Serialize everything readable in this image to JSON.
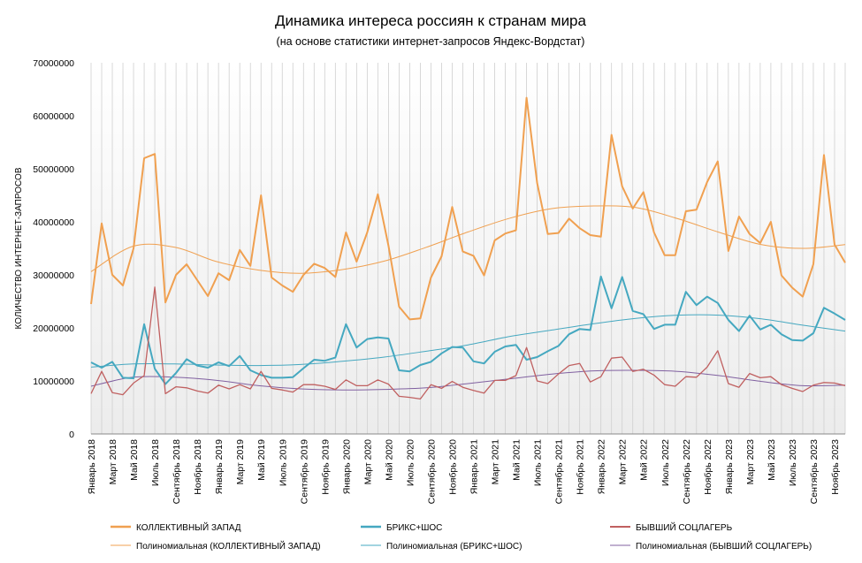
{
  "chart_data": {
    "type": "line",
    "title": "Динамика  интереса  россиян  к странам  мира",
    "subtitle": "(на основе  статистики  интернет-запросов  Яндекс-Вордстат)",
    "ylabel": "КОЛИЧЕСТВО ИНТЕРНЕТ-ЗАПРОСОВ",
    "xlabel": "",
    "ylim": [
      0,
      70000000
    ],
    "y_ticks": [
      "0",
      "10000000",
      "20000000",
      "30000000",
      "40000000",
      "50000000",
      "60000000",
      "70000000"
    ],
    "grid": "vertical",
    "legend_position": "bottom",
    "x_tick_labels": [
      "Январь 2018",
      "Март 2018",
      "Май 2018",
      "Июль 2018",
      "Сентябрь 2018",
      "Ноябрь 2018",
      "Январь 2019",
      "Март 2019",
      "Май 2019",
      "Июль 2019",
      "Сентябрь 2019",
      "Ноябрь 2019",
      "Январь 2020",
      "Март 2020",
      "Май 2020",
      "Июль 2020",
      "Сентябрь 2020",
      "Ноябрь 2020",
      "Январь 2021",
      "Март 2021",
      "Май 2021",
      "Июль 2021",
      "Сентябрь 2021",
      "Ноябрь 2021",
      "Январь 2022",
      "Март 2022",
      "Май 2022",
      "Июль 2022",
      "Сентябрь 2022",
      "Ноябрь 2022",
      "Январь 2023",
      "Март 2023",
      "Май 2023",
      "Июль 2023",
      "Сентябрь 2023",
      "Ноябрь 2023"
    ],
    "series": [
      {
        "name": "КОЛЛЕКТИВНЫЙ ЗАПАД",
        "color": "#f0a050",
        "values": [
          24500000,
          39700000,
          30000000,
          28000000,
          35000000,
          52000000,
          52800000,
          24800000,
          30000000,
          32000000,
          29000000,
          26000000,
          30300000,
          29000000,
          34700000,
          31700000,
          45000000,
          29500000,
          28000000,
          26800000,
          30000000,
          32100000,
          31300000,
          29600000,
          38000000,
          32500000,
          38000000,
          45200000,
          35500000,
          24000000,
          21600000,
          21800000,
          29500000,
          33500000,
          42800000,
          34400000,
          33600000,
          29900000,
          36500000,
          37800000,
          38400000,
          63400000,
          47300000,
          37700000,
          37900000,
          40600000,
          38800000,
          37500000,
          37200000,
          56400000,
          46700000,
          42500000,
          45600000,
          38000000,
          33700000,
          33700000,
          42000000,
          42300000,
          47500000,
          51400000,
          34500000,
          41000000,
          37700000,
          36000000,
          40000000,
          29900000,
          27600000,
          25900000,
          32000000,
          52600000,
          35700000,
          32300000
        ]
      },
      {
        "name": "БРИКС+ШОС",
        "color": "#45a8c0",
        "values": [
          13500000,
          12500000,
          13600000,
          10600000,
          10500000,
          20700000,
          12300000,
          9400000,
          11500000,
          14100000,
          12900000,
          12500000,
          13500000,
          12800000,
          14700000,
          12000000,
          11100000,
          10600000,
          10600000,
          10700000,
          12400000,
          14000000,
          13800000,
          14400000,
          20700000,
          16300000,
          17900000,
          18200000,
          18000000,
          12000000,
          11800000,
          13000000,
          13600000,
          15200000,
          16400000,
          16300000,
          13700000,
          13300000,
          15500000,
          16500000,
          16800000,
          14000000,
          14500000,
          15600000,
          16600000,
          18800000,
          19800000,
          19600000,
          29700000,
          23700000,
          29600000,
          23200000,
          22600000,
          19800000,
          20600000,
          20600000,
          26800000,
          24300000,
          25900000,
          24700000,
          21500000,
          19400000,
          22300000,
          19700000,
          20600000,
          18800000,
          17700000,
          17600000,
          19000000,
          23800000,
          22700000,
          21500000
        ]
      },
      {
        "name": "БЫВШИЙ СОЦЛАГЕРЬ",
        "color": "#c06060",
        "values": [
          7600000,
          11800000,
          7800000,
          7400000,
          9600000,
          11000000,
          27700000,
          7600000,
          8900000,
          8700000,
          8100000,
          7700000,
          9200000,
          8500000,
          9300000,
          8500000,
          11800000,
          8600000,
          8300000,
          7900000,
          9300000,
          9300000,
          9000000,
          8400000,
          10200000,
          9100000,
          9100000,
          10200000,
          9400000,
          7100000,
          6900000,
          6600000,
          9300000,
          8600000,
          9900000,
          8800000,
          8200000,
          7700000,
          10100000,
          10100000,
          11000000,
          16300000,
          10000000,
          9500000,
          11300000,
          12900000,
          13300000,
          9800000,
          10800000,
          14300000,
          14500000,
          11800000,
          12200000,
          11100000,
          9300000,
          9000000,
          10800000,
          10700000,
          12600000,
          15700000,
          9500000,
          8800000,
          11400000,
          10600000,
          10800000,
          9300000,
          8600000,
          8000000,
          9200000,
          9700000,
          9600000,
          9100000
        ]
      }
    ],
    "trendlines": [
      {
        "name": "Полиномиальная (КОЛЛЕКТИВНЫЙ ЗАПАД)",
        "color": "#f0a050",
        "values": [
          30600000,
          35400000,
          35200000,
          32500000,
          30900000,
          30300000,
          31000000,
          32600000,
          35200000,
          38100000,
          40700000,
          42500000,
          43000000,
          42700000,
          40600000,
          38000000,
          35700000,
          35000000,
          35700000
        ]
      },
      {
        "name": "Полиномиальная (БРИКС+ШОС)",
        "color": "#45a8c0",
        "values": [
          12600000,
          13200000,
          13200000,
          13000000,
          12900000,
          13100000,
          13700000,
          14500000,
          15600000,
          16800000,
          18400000,
          19600000,
          20800000,
          21800000,
          22400000,
          22400000,
          21700000,
          20500000,
          19400000
        ]
      },
      {
        "name": "Полиномиальная (БЫВШИЙ СОЦЛАГЕРЬ)",
        "color": "#8060a0",
        "values": [
          9000000,
          10700000,
          10700000,
          10100000,
          9100000,
          8500000,
          8300000,
          8400000,
          8700000,
          9500000,
          10400000,
          11300000,
          11900000,
          12000000,
          11800000,
          11000000,
          9900000,
          9100000,
          9200000
        ]
      }
    ]
  }
}
